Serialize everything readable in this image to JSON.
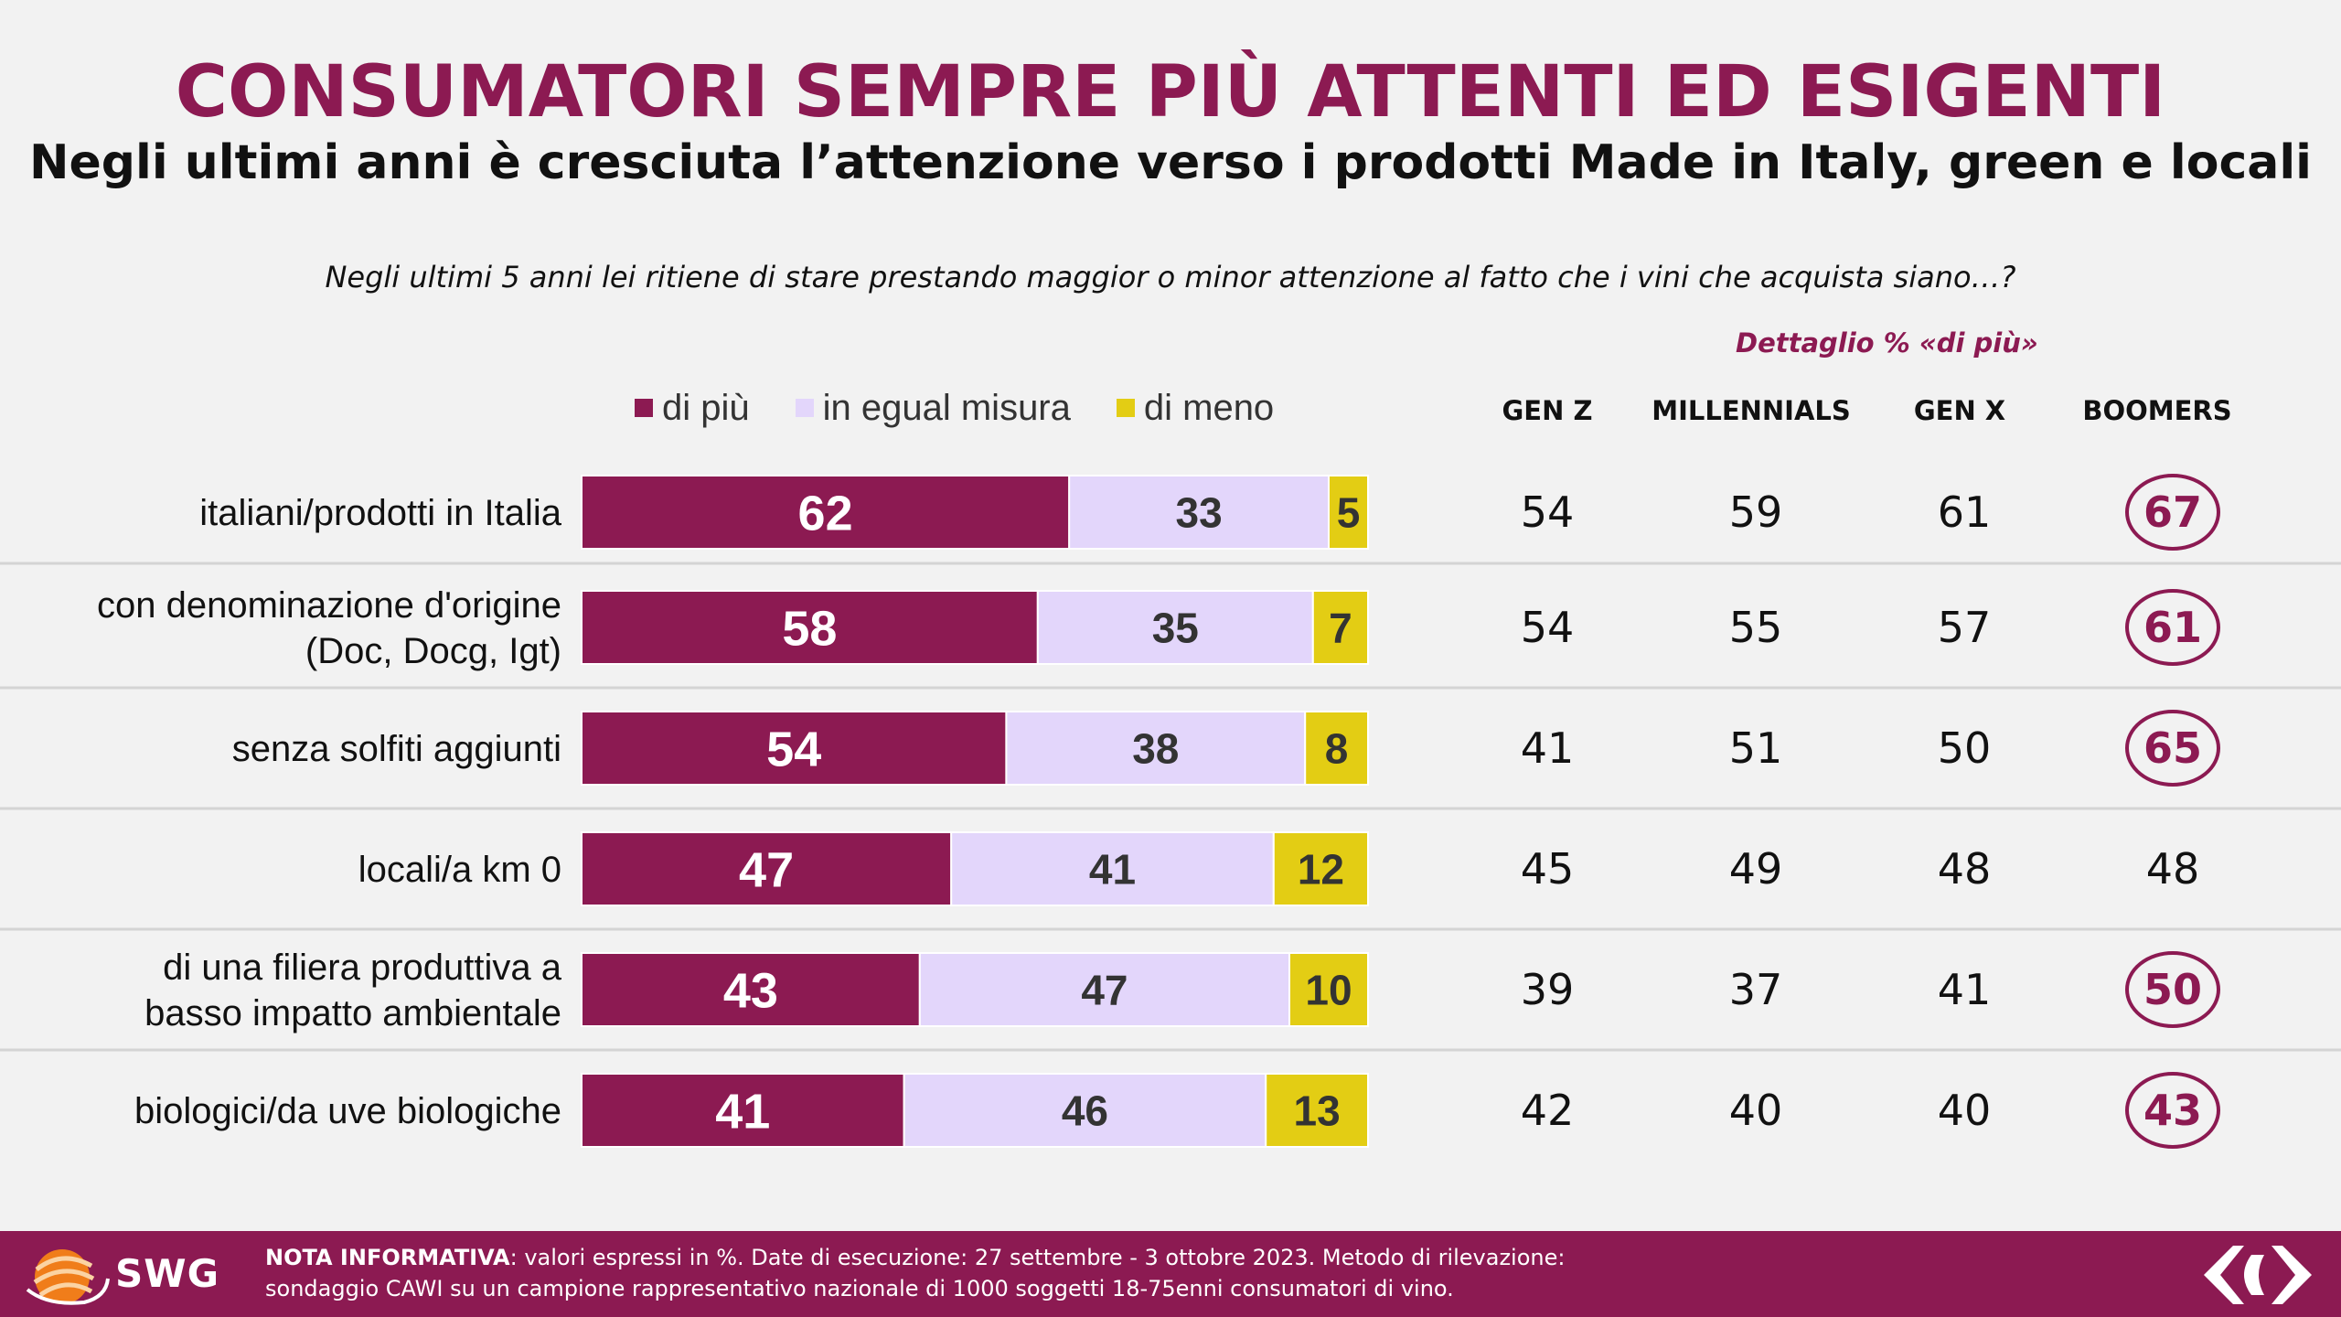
{
  "header": {
    "title": "CONSUMATORI SEMPRE PIÙ ATTENTI ED ESIGENTI",
    "subtitle": "Negli ultimi anni è cresciuta l’attenzione verso i prodotti Made in Italy, green e locali",
    "question": "Negli ultimi 5 anni lei ritiene di stare prestando maggior o minor attenzione al fatto che i vini che acquista siano…?",
    "detail_label": "Dettaglio % «di più»"
  },
  "colors": {
    "accent": "#8c1a52",
    "di_piu": "#8c1a52",
    "in_egual_misura": "#e3d6fb",
    "di_meno": "#e3cd14",
    "footer_bg": "#8c1a52",
    "row_divider": "#d4d4d4"
  },
  "chart_data": {
    "type": "bar",
    "orientation": "horizontal",
    "stacked": true,
    "xlim": [
      0,
      100
    ],
    "legend_position": "top",
    "categories": [
      [
        "italiani/prodotti in Italia"
      ],
      [
        "con denominazione d'origine",
        "(Doc, Docg, Igt)"
      ],
      [
        "senza solfiti aggiunti"
      ],
      [
        "locali/a km 0"
      ],
      [
        "di una filiera produttiva a",
        "basso impatto ambientale"
      ],
      [
        "biologici/da uve biologiche"
      ]
    ],
    "series": [
      {
        "name": "di più",
        "color": "#8c1a52",
        "values": [
          62,
          58,
          54,
          47,
          43,
          41
        ]
      },
      {
        "name": "in egual misura",
        "color": "#e3d6fb",
        "values": [
          33,
          35,
          38,
          41,
          47,
          46
        ]
      },
      {
        "name": "di meno",
        "color": "#e3cd14",
        "values": [
          5,
          7,
          8,
          12,
          10,
          13
        ]
      }
    ]
  },
  "generations": {
    "columns": [
      "GEN Z",
      "MILLENNIALS",
      "GEN X",
      "BOOMERS"
    ],
    "values": [
      [
        54,
        59,
        61,
        67
      ],
      [
        54,
        55,
        57,
        61
      ],
      [
        41,
        51,
        50,
        65
      ],
      [
        45,
        49,
        48,
        48
      ],
      [
        39,
        37,
        41,
        50
      ],
      [
        42,
        40,
        40,
        43
      ]
    ],
    "highlighted_column": "BOOMERS",
    "highlighted_rows": [
      true,
      true,
      true,
      false,
      true,
      true
    ]
  },
  "footer": {
    "brand": "SWG",
    "note_label": "NOTA INFORMATIVA",
    "note_line1": ": valori espressi in %. Date di esecuzione: 27 settembre - 3 ottobre 2023. Metodo di rilevazione:",
    "note_line2": "sondaggio CAWI su un campione rappresentativo nazionale di 1000 soggetti 18-75enni consumatori di vino.",
    "right_logo_icon": "carrefour-logo-icon",
    "left_logo_icon": "swg-globe-icon"
  }
}
